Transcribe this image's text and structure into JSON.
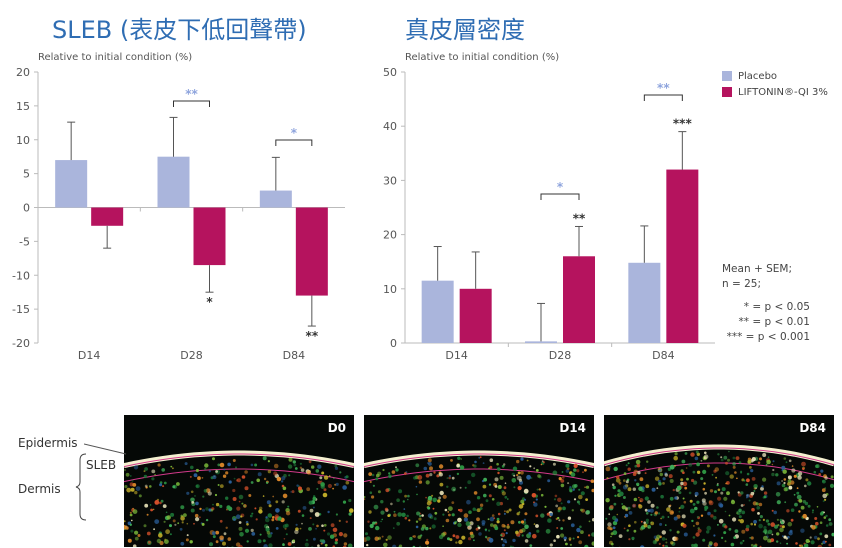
{
  "left_title": "SLEB (表皮下低回聲帶)",
  "right_title": "真皮層密度",
  "colors": {
    "placebo": "#aab5dc",
    "liftonin": "#b5135e",
    "sig_placebo": "#8ea4dd",
    "sig_liftonin": "#333333"
  },
  "legend": {
    "placebo": "Placebo",
    "liftonin": "LIFTONIN®-QI 3%"
  },
  "notes": {
    "mean": "Mean + SEM;",
    "n": "n = 25;",
    "p1": "* = p < 0.05",
    "p2": "** = p < 0.01",
    "p3": "*** = p < 0.001"
  },
  "chart_data": [
    {
      "type": "bar",
      "title": "SLEB (表皮下低回聲帶)",
      "ylabel": "Relative to initial condition (%)",
      "xlabel": "",
      "categories": [
        "D14",
        "D28",
        "D84"
      ],
      "ylim": [
        -20,
        20
      ],
      "yticks": [
        20,
        15,
        10,
        5,
        0,
        -5,
        -10,
        -15,
        -20
      ],
      "series": [
        {
          "name": "Placebo",
          "values": [
            7.0,
            7.5,
            2.5
          ],
          "errors": [
            5.6,
            5.8,
            4.9
          ]
        },
        {
          "name": "LIFTONIN®-QI 3%",
          "values": [
            -2.7,
            -8.5,
            -13.0
          ],
          "errors": [
            3.3,
            4.0,
            4.5
          ]
        }
      ],
      "annotations": [
        {
          "category": "D28",
          "series": "LIFTONIN®-QI 3%",
          "text": "*"
        },
        {
          "category": "D84",
          "series": "LIFTONIN®-QI 3%",
          "text": "**"
        },
        {
          "category": "D28",
          "bracket": true,
          "text": "**"
        },
        {
          "category": "D84",
          "bracket": true,
          "text": "*"
        }
      ],
      "grid": false,
      "legend": "none"
    },
    {
      "type": "bar",
      "title": "真皮層密度",
      "ylabel": "Relative to initial condition (%)",
      "xlabel": "",
      "categories": [
        "D14",
        "D28",
        "D84"
      ],
      "ylim": [
        0,
        50
      ],
      "yticks": [
        50,
        40,
        30,
        20,
        10,
        0
      ],
      "series": [
        {
          "name": "Placebo",
          "values": [
            11.5,
            0.3,
            14.8
          ],
          "errors": [
            6.3,
            7.0,
            6.8
          ]
        },
        {
          "name": "LIFTONIN®-QI 3%",
          "values": [
            10.0,
            16.0,
            32.0
          ],
          "errors": [
            6.8,
            5.5,
            7.0
          ]
        }
      ],
      "annotations": [
        {
          "category": "D28",
          "series": "LIFTONIN®-QI 3%",
          "text": "**"
        },
        {
          "category": "D84",
          "series": "LIFTONIN®-QI 3%",
          "text": "***"
        },
        {
          "category": "D28",
          "bracket": true,
          "text": "*"
        },
        {
          "category": "D84",
          "bracket": true,
          "text": "**"
        }
      ],
      "grid": false,
      "legend": "top-right"
    }
  ],
  "images": {
    "panels": [
      "D0",
      "D14",
      "D84"
    ],
    "labels": {
      "epidermis": "Epidermis",
      "sleb": "SLEB",
      "dermis": "Dermis"
    }
  }
}
